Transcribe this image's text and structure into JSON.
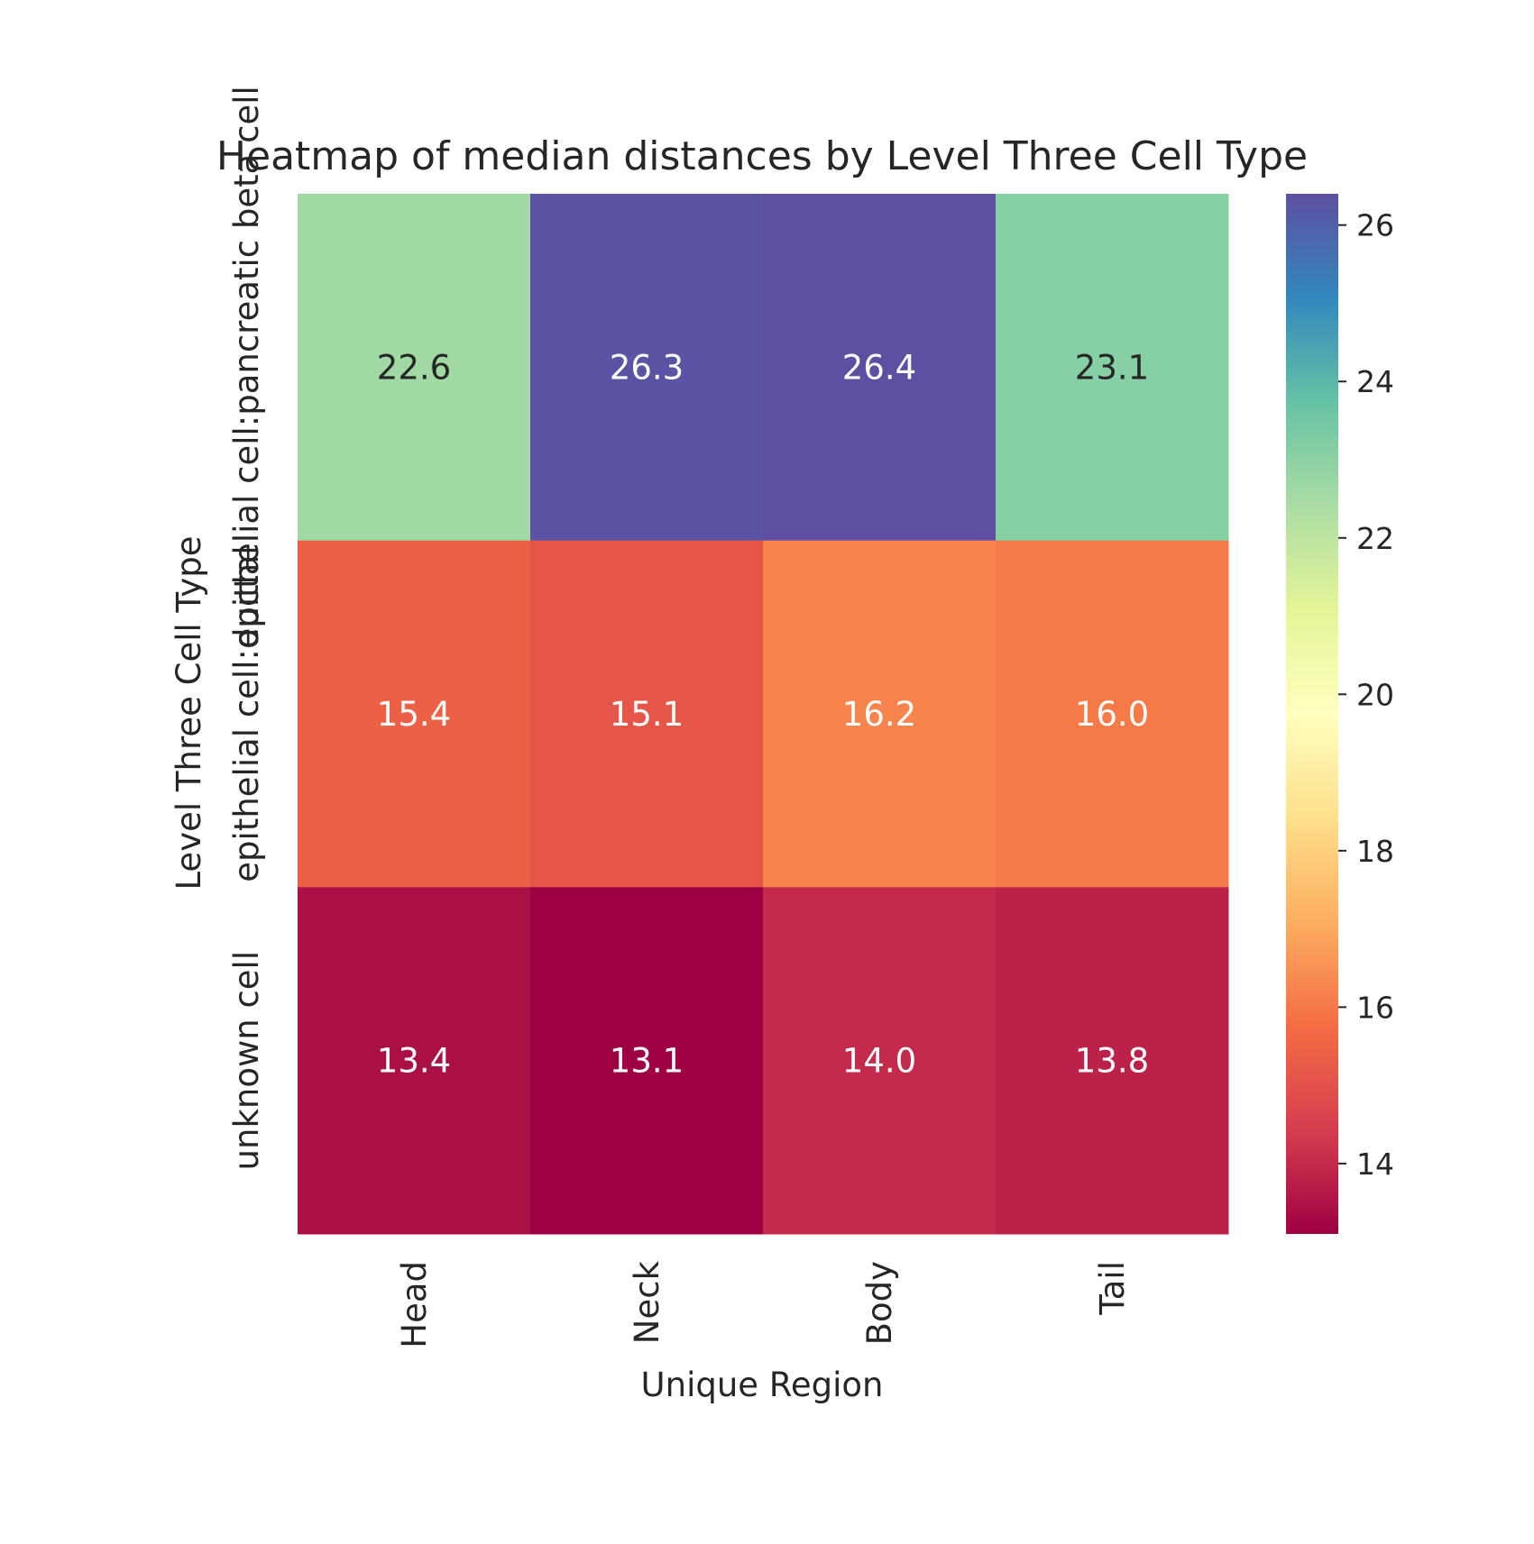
{
  "chart_data": {
    "type": "heatmap",
    "title": "Heatmap of median distances by Level Three Cell Type",
    "xlabel": "Unique Region",
    "ylabel": "Level Three Cell Type",
    "x_categories": [
      "Head",
      "Neck",
      "Body",
      "Tail"
    ],
    "y_categories": [
      "epithelial cell:pancreatic beta cell",
      "epithelial cell:ductal",
      "unknown cell"
    ],
    "values": [
      [
        22.6,
        26.3,
        26.4,
        23.1
      ],
      [
        15.4,
        15.1,
        16.2,
        16.0
      ],
      [
        13.4,
        13.1,
        14.0,
        13.8
      ]
    ],
    "cell_text_colors": [
      [
        "#262626",
        "#ffffff",
        "#ffffff",
        "#262626"
      ],
      [
        "#ffffff",
        "#ffffff",
        "#ffffff",
        "#ffffff"
      ],
      [
        "#ffffff",
        "#ffffff",
        "#ffffff",
        "#ffffff"
      ]
    ],
    "colormap": "Spectral",
    "colorbar": {
      "vmin": 13.1,
      "vmax": 26.4,
      "ticks": [
        14,
        16,
        18,
        20,
        22,
        24,
        26
      ]
    },
    "grid": false,
    "legend": "colorbar-right"
  }
}
